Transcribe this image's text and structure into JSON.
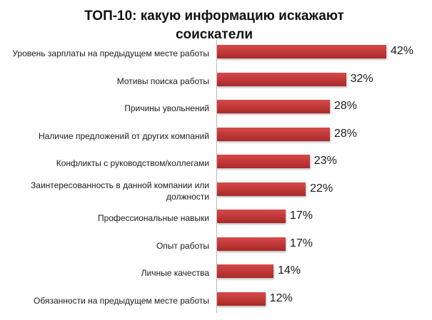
{
  "chart_data": {
    "type": "bar",
    "orientation": "horizontal",
    "title": "ТОП-10: какую информацию искажают соискатели",
    "title_lines": [
      "ТОП-10: какую информацию искажают",
      "соискатели"
    ],
    "xlabel": "",
    "ylabel": "",
    "categories": [
      "Уровень зарплаты на предыдущем месте работы",
      "Мотивы поиска работы",
      "Причины увольнений",
      "Наличие предложений от других компаний",
      "Конфликты с руководством/коллегами",
      "Заинтересованность в данной компании или должности",
      "Профессиональные навыки",
      "Опыт работы",
      "Личные качества",
      "Обязанности на предыдущем месте работы"
    ],
    "values": [
      42,
      32,
      28,
      28,
      23,
      22,
      17,
      17,
      14,
      12
    ],
    "value_labels": [
      "42%",
      "32%",
      "28%",
      "28%",
      "23%",
      "22%",
      "17%",
      "17%",
      "14%",
      "12%"
    ],
    "unit": "%",
    "grid": false,
    "legend": null,
    "bar_color": "#c43a3a"
  }
}
